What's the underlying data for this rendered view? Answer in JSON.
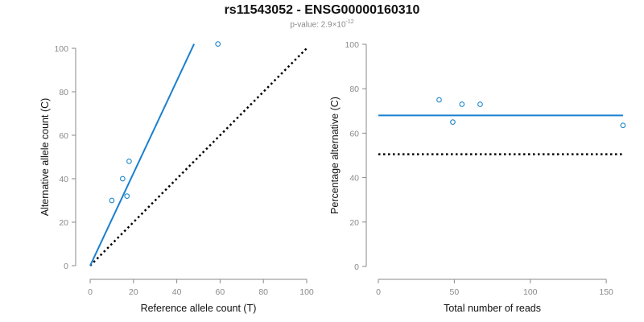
{
  "title": "rs11543052 - ENSG00000160310",
  "subtitle": {
    "prefix": "p-value: 2.9×10",
    "exponent": "-12"
  },
  "colors": {
    "points": "#1f87c9",
    "fit_line": "#1a80d0",
    "reference_line": "#000000",
    "axis": "#8a8a8a",
    "tick_label": "#8a8a8a"
  },
  "chart_data": [
    {
      "type": "scatter",
      "id": "allele-counts",
      "title": "",
      "xlabel": "Reference allele count (T)",
      "ylabel": "Alternative allele count (C)",
      "xlim": [
        0,
        100
      ],
      "ylim": [
        0,
        100
      ],
      "xticks": [
        "0",
        "20",
        "40",
        "60",
        "80",
        "100"
      ],
      "yticks": [
        "0",
        "20",
        "40",
        "60",
        "80",
        "100"
      ],
      "points": [
        {
          "x": 10,
          "y": 30
        },
        {
          "x": 15,
          "y": 40
        },
        {
          "x": 17,
          "y": 32
        },
        {
          "x": 18,
          "y": 48
        },
        {
          "x": 59,
          "y": 102
        }
      ],
      "fit_line": {
        "from": [
          0,
          0
        ],
        "to": [
          48,
          102
        ],
        "style": "solid",
        "color": "blue"
      },
      "reference_line": {
        "from": [
          0,
          0
        ],
        "to": [
          100,
          100
        ],
        "style": "dotted",
        "color": "black"
      }
    },
    {
      "type": "scatter",
      "id": "percentage-alternative",
      "title": "",
      "xlabel": "Total number of reads",
      "ylabel": "Percentage alternative (C)",
      "xlim": [
        0,
        160
      ],
      "ylim": [
        0,
        100
      ],
      "xticks": [
        "0",
        "50",
        "100",
        "150"
      ],
      "yticks": [
        "0",
        "20",
        "40",
        "60",
        "80",
        "100"
      ],
      "points": [
        {
          "x": 40,
          "y": 75
        },
        {
          "x": 49,
          "y": 65
        },
        {
          "x": 55,
          "y": 73
        },
        {
          "x": 67,
          "y": 73
        },
        {
          "x": 161,
          "y": 63.5
        }
      ],
      "fit_line": {
        "from": [
          0,
          68
        ],
        "to": [
          161,
          68
        ],
        "style": "solid",
        "color": "blue"
      },
      "reference_line": {
        "from": [
          0,
          50.5
        ],
        "to": [
          161,
          50.5
        ],
        "style": "dotted",
        "color": "black"
      }
    }
  ]
}
